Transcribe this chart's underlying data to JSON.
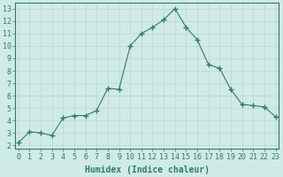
{
  "x": [
    0,
    1,
    2,
    3,
    4,
    5,
    6,
    7,
    8,
    9,
    10,
    11,
    12,
    13,
    14,
    15,
    16,
    17,
    18,
    19,
    20,
    21,
    22,
    23
  ],
  "y": [
    2.2,
    3.1,
    3.0,
    2.8,
    4.2,
    4.4,
    4.4,
    4.8,
    6.6,
    6.5,
    10.0,
    11.0,
    11.5,
    12.1,
    13.0,
    11.5,
    10.5,
    8.5,
    8.2,
    6.5,
    5.3,
    5.2,
    5.1,
    4.3
  ],
  "line_color": "#2e7b6e",
  "marker": "+",
  "marker_size": 4,
  "bg_color": "#d0eae6",
  "grid_color": "#b8d8d4",
  "xlabel": "Humidex (Indice chaleur)",
  "ylabel_ticks": [
    2,
    3,
    4,
    5,
    6,
    7,
    8,
    9,
    10,
    11,
    12,
    13
  ],
  "xtick_labels": [
    "0",
    "1",
    "2",
    "3",
    "4",
    "5",
    "6",
    "7",
    "8",
    "9",
    "10",
    "11",
    "12",
    "13",
    "14",
    "15",
    "16",
    "17",
    "18",
    "19",
    "20",
    "21",
    "22",
    "23"
  ],
  "xlim": [
    -0.3,
    23.3
  ],
  "ylim": [
    1.7,
    13.5
  ],
  "tick_color": "#2e7b6e",
  "label_color": "#2e7b6e",
  "font_size": 6.0,
  "xlabel_font_size": 7.0
}
